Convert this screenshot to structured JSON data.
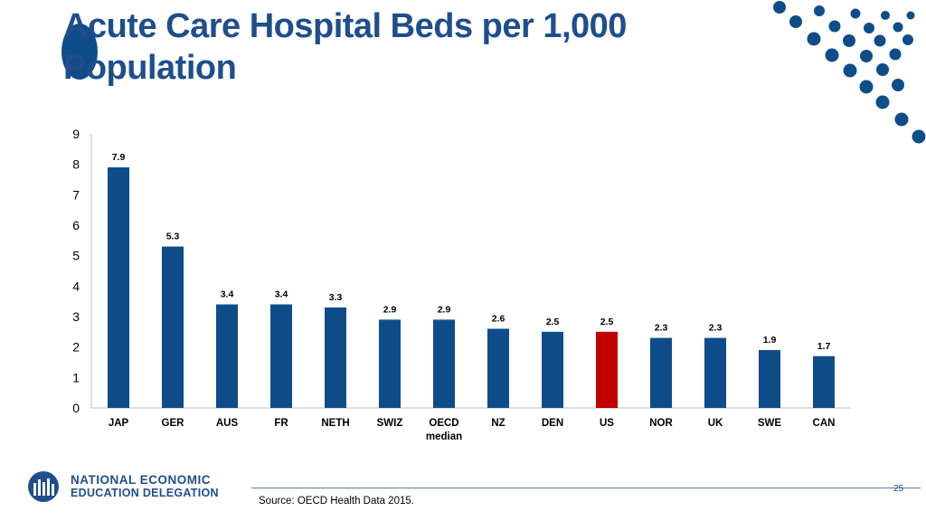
{
  "slide": {
    "title": "Acute Care Hospital Beds per 1,000 Population",
    "page_number": "25",
    "source": "Source: OECD Health Data 2015."
  },
  "brand": {
    "line1": "NATIONAL ECONOMIC",
    "line2": "EDUCATION DELEGATION"
  },
  "colors": {
    "bar": "#0f4d8a",
    "highlight": "#c00000",
    "accent": "#1f4e8c"
  },
  "chart_data": {
    "type": "bar",
    "title": "Acute Care Hospital Beds per 1,000 Population",
    "xlabel": "",
    "ylabel": "",
    "ylim": [
      0,
      9
    ],
    "yticks": [
      "0",
      "1",
      "2",
      "3",
      "4",
      "5",
      "6",
      "7",
      "8",
      "9"
    ],
    "categories": [
      "JAP",
      "GER",
      "AUS",
      "FR",
      "NETH",
      "SWIZ",
      "OECD median",
      "NZ",
      "DEN",
      "US",
      "NOR",
      "UK",
      "SWE",
      "CAN"
    ],
    "values": [
      7.9,
      5.3,
      3.4,
      3.4,
      3.3,
      2.9,
      2.9,
      2.6,
      2.5,
      2.5,
      2.3,
      2.3,
      1.9,
      1.7
    ],
    "value_labels": [
      "7.9",
      "5.3",
      "3.4",
      "3.4",
      "3.3",
      "2.9",
      "2.9",
      "2.6",
      "2.5",
      "2.5",
      "2.3",
      "2.3",
      "1.9",
      "1.7"
    ],
    "highlight": [
      "US"
    ],
    "grid": false,
    "legend": "none"
  }
}
